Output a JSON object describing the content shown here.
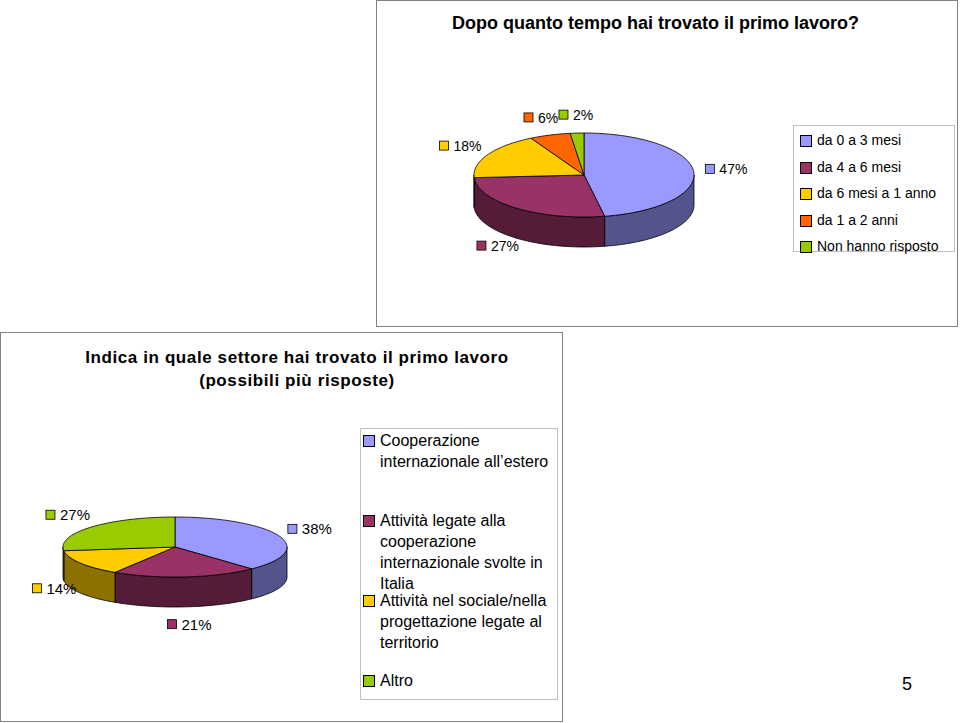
{
  "chart_data": [
    {
      "type": "pie",
      "title": "Dopo quanto tempo hai trovato il primo lavoro?",
      "categories": [
        "da 0 a 3 mesi",
        "da 4 a 6 mesi",
        "da 6 mesi a 1 anno",
        "da 1 a 2 anni",
        "Non hanno risposto"
      ],
      "values": [
        47,
        27,
        18,
        6,
        2
      ],
      "value_labels": [
        "47%",
        "27%",
        "18%",
        "6%",
        "2%"
      ],
      "colors": [
        "#9999ff",
        "#993366",
        "#ffcc00",
        "#ff6600",
        "#99cc00"
      ],
      "data_labels": true,
      "legend": "right"
    },
    {
      "type": "pie",
      "title": "Indica in quale settore hai trovato il primo lavoro (possibili più risposte)",
      "categories": [
        "Cooperazione internazionale all’estero",
        "Attività legate alla cooperazione internazionale svolte in Italia",
        "Attività nel sociale/nella progettazione legate al territorio",
        "Altro"
      ],
      "values": [
        38,
        21,
        14,
        27
      ],
      "value_labels": [
        "38%",
        "21%",
        "14%",
        "27%"
      ],
      "colors": [
        "#9999ff",
        "#993366",
        "#ffcc00",
        "#99cc00"
      ],
      "data_labels": true,
      "legend": "right"
    }
  ],
  "page": "5"
}
